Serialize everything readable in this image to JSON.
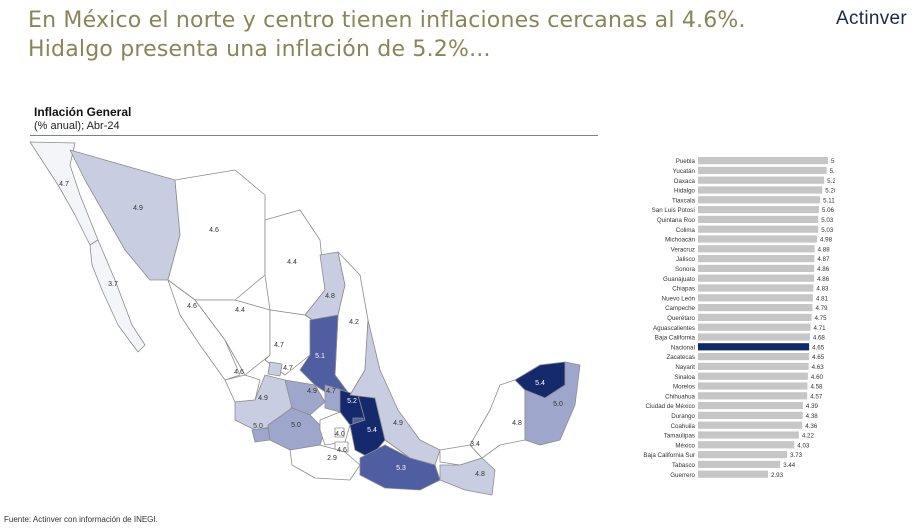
{
  "header": {
    "title": "En México el norte y centro tienen inflaciones cercanas al 4.6%. Hidalgo presenta una inflación de 5.2%...",
    "logo_text": "Actinver"
  },
  "map_panel": {
    "title": "Inflación General",
    "subtitle": "(% anual); Abr-24",
    "labels": [
      "4.7",
      "4.9",
      "4.6",
      "4.4",
      "3.7",
      "4.6",
      "4.4",
      "4.8",
      "4.2",
      "4.7",
      "4.7",
      "5.1",
      "4.6",
      "4.9",
      "4.9",
      "4.7",
      "5.0",
      "5.0",
      "5.2",
      "4.0",
      "5.4",
      "4.9",
      "4.6",
      "2.9",
      "5.3",
      "3.4",
      "4.8",
      "4.8",
      "5.4",
      "5.0"
    ],
    "colors": {
      "light": "#f4f5f9",
      "mid_light": "#c9cde2",
      "mid": "#9fa6cb",
      "dark": "#4f5ea0",
      "darkest": "#15296d",
      "border": "#8c8c8c"
    }
  },
  "footer": {
    "source": "Fuente: Actinver con información de INEGI."
  },
  "chart_data": {
    "type": "bar",
    "orientation": "horizontal",
    "categories": [
      "Puebla",
      "Yucatán",
      "Oaxaca",
      "Hidalgo",
      "Tlaxcala",
      "San Luis Potosí",
      "Quintana Roo",
      "Colima",
      "Michoacán",
      "Veracruz",
      "Jalisco",
      "Sonora",
      "Guanajuato",
      "Chiapas",
      "Nuevo León",
      "Campeche",
      "Querétaro",
      "Aguascalientes",
      "Baja California",
      "Nacional",
      "Zacatecas",
      "Nayarit",
      "Sinaloa",
      "Morelos",
      "Chihuahua",
      "Ciudad de México",
      "Durango",
      "Coahuila",
      "Tamaulipas",
      "México",
      "Baja California Sur",
      "Tabasco",
      "Guerrero"
    ],
    "values": [
      5.44,
      5.38,
      5.28,
      5.2,
      5.11,
      5.06,
      5.03,
      5.03,
      4.98,
      4.88,
      4.87,
      4.86,
      4.86,
      4.83,
      4.81,
      4.79,
      4.75,
      4.71,
      4.68,
      4.65,
      4.65,
      4.63,
      4.6,
      4.58,
      4.57,
      4.39,
      4.38,
      4.36,
      4.22,
      4.03,
      3.73,
      3.44,
      2.93
    ],
    "value_labels": [
      "5.44",
      "5.38",
      "5.28",
      "5.20",
      "5.11",
      "5.06",
      "5.03",
      "5.03",
      "4.98",
      "4.88",
      "4.87",
      "4.86",
      "4.86",
      "4.83",
      "4.81",
      "4.79",
      "4.75",
      "4.71",
      "4.68",
      "4.65",
      "4.65",
      "4.63",
      "4.60",
      "4.58",
      "4.57",
      "4.39",
      "4.38",
      "4.36",
      "4.22",
      "4.03",
      "3.73",
      "3.44",
      "2.93"
    ],
    "highlight_category": "Nacional",
    "colors": {
      "bar": "#c6c6c6",
      "highlight": "#0f2a6b"
    },
    "xlim": [
      0,
      5.44
    ]
  }
}
